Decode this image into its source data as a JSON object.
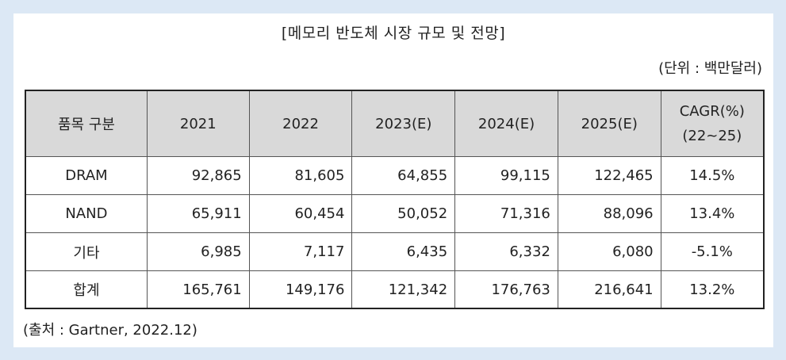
{
  "title": "[메모리 반도체 시장 규모 및 전망]",
  "unit": "(단위 : 백만달러)",
  "table": {
    "header": {
      "item": "품목 구분",
      "years": [
        "2021",
        "2022",
        "2023(E)",
        "2024(E)",
        "2025(E)"
      ],
      "cagr_line1": "CAGR(%)",
      "cagr_line2": "(22~25)"
    },
    "rows": [
      {
        "item": "DRAM",
        "values": [
          "92,865",
          "81,605",
          "64,855",
          "99,115",
          "122,465"
        ],
        "cagr": "14.5%"
      },
      {
        "item": "NAND",
        "values": [
          "65,911",
          "60,454",
          "50,052",
          "71,316",
          "88,096"
        ],
        "cagr": "13.4%"
      },
      {
        "item": "기타",
        "values": [
          "6,985",
          "7,117",
          "6,435",
          "6,332",
          "6,080"
        ],
        "cagr": "-5.1%"
      },
      {
        "item": "합계",
        "values": [
          "165,761",
          "149,176",
          "121,342",
          "176,763",
          "216,641"
        ],
        "cagr": "13.2%"
      }
    ]
  },
  "source": "(출처 : Gartner, 2022.12)"
}
